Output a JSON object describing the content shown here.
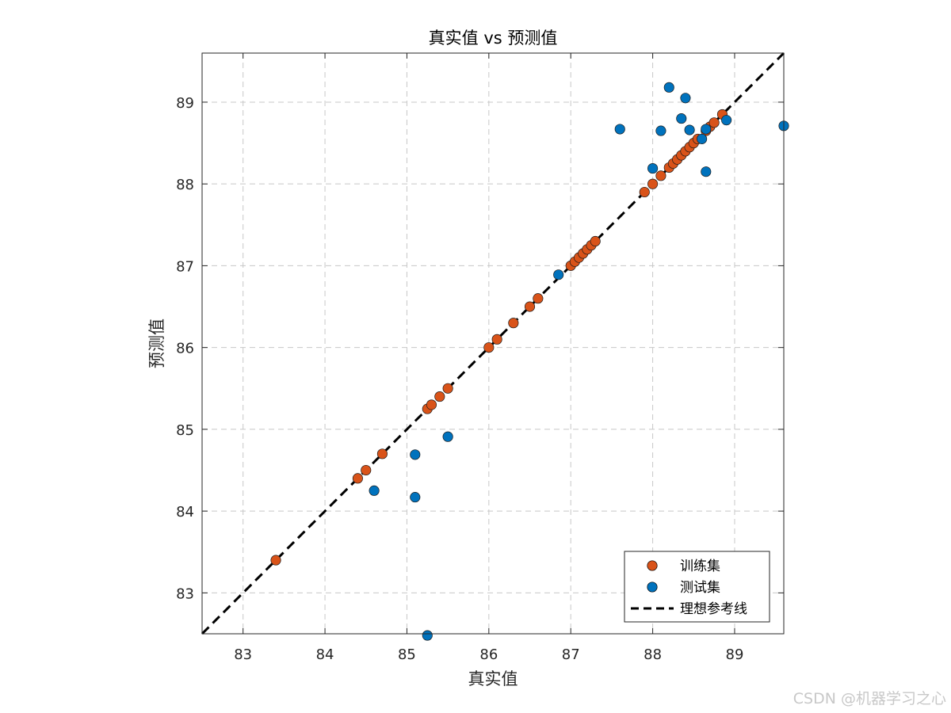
{
  "chart_data": {
    "type": "scatter",
    "title": "真实值 vs 预测值",
    "xlabel": "真实值",
    "ylabel": "预测值",
    "xlim": [
      82.5,
      89.6
    ],
    "ylim": [
      82.5,
      89.6
    ],
    "xticks": [
      83,
      84,
      85,
      86,
      87,
      88,
      89
    ],
    "yticks": [
      83,
      84,
      85,
      86,
      87,
      88,
      89
    ],
    "grid": true,
    "grid_style": "dashed",
    "legend_placement": "bottom-right",
    "series": [
      {
        "name": "训练集",
        "color": "#d95319",
        "points": [
          [
            83.4,
            83.4
          ],
          [
            84.4,
            84.4
          ],
          [
            84.5,
            84.5
          ],
          [
            84.7,
            84.7
          ],
          [
            85.25,
            85.25
          ],
          [
            85.3,
            85.3
          ],
          [
            85.4,
            85.4
          ],
          [
            85.5,
            85.5
          ],
          [
            86.0,
            86.0
          ],
          [
            86.1,
            86.1
          ],
          [
            86.3,
            86.3
          ],
          [
            86.5,
            86.5
          ],
          [
            86.6,
            86.6
          ],
          [
            87.0,
            87.0
          ],
          [
            87.05,
            87.05
          ],
          [
            87.1,
            87.1
          ],
          [
            87.15,
            87.15
          ],
          [
            87.2,
            87.2
          ],
          [
            87.25,
            87.25
          ],
          [
            87.3,
            87.3
          ],
          [
            87.9,
            87.9
          ],
          [
            88.0,
            88.0
          ],
          [
            88.1,
            88.1
          ],
          [
            88.2,
            88.2
          ],
          [
            88.25,
            88.25
          ],
          [
            88.3,
            88.3
          ],
          [
            88.35,
            88.35
          ],
          [
            88.4,
            88.4
          ],
          [
            88.45,
            88.45
          ],
          [
            88.5,
            88.5
          ],
          [
            88.55,
            88.55
          ],
          [
            88.65,
            88.65
          ],
          [
            88.7,
            88.7
          ],
          [
            88.75,
            88.75
          ],
          [
            88.85,
            88.85
          ]
        ]
      },
      {
        "name": "测试集",
        "color": "#0072bd",
        "points": [
          [
            85.25,
            82.48
          ],
          [
            84.6,
            84.25
          ],
          [
            85.1,
            84.17
          ],
          [
            85.1,
            84.69
          ],
          [
            85.5,
            84.91
          ],
          [
            86.85,
            86.89
          ],
          [
            87.6,
            88.67
          ],
          [
            88.0,
            88.19
          ],
          [
            88.1,
            88.65
          ],
          [
            88.2,
            89.18
          ],
          [
            88.35,
            88.8
          ],
          [
            88.4,
            89.05
          ],
          [
            88.45,
            88.66
          ],
          [
            88.6,
            88.55
          ],
          [
            88.65,
            88.67
          ],
          [
            88.65,
            88.15
          ],
          [
            88.9,
            88.78
          ],
          [
            89.6,
            88.71
          ]
        ]
      }
    ],
    "reference_line": {
      "name": "理想参考线",
      "color": "#000000",
      "style": "dashed",
      "from": [
        82.5,
        82.5
      ],
      "to": [
        89.6,
        89.6
      ]
    }
  },
  "watermark": "CSDN @机器学习之心"
}
